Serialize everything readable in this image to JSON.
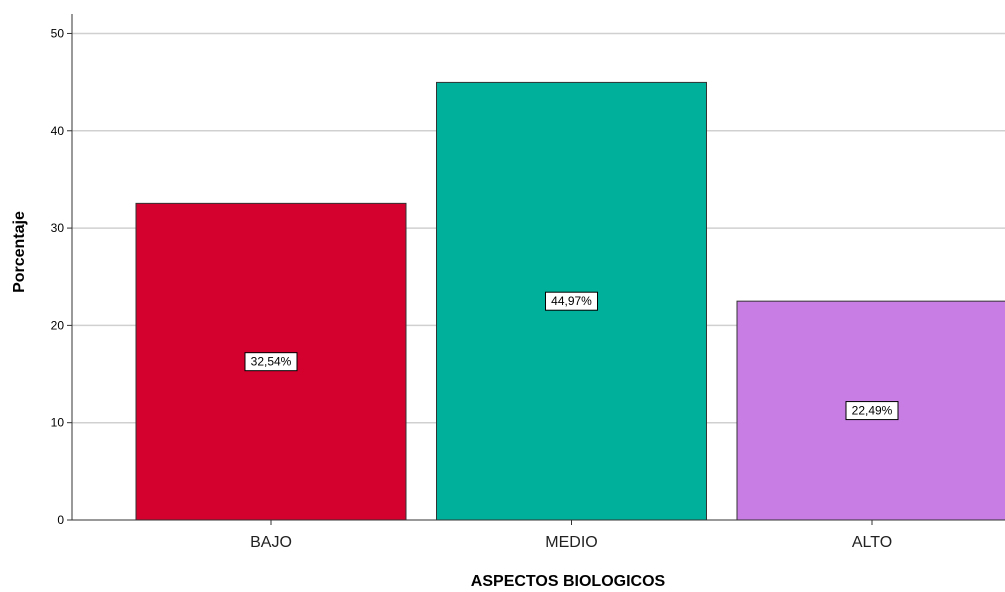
{
  "chart_data": {
    "type": "bar",
    "categories": [
      "BAJO",
      "MEDIO",
      "ALTO"
    ],
    "values": [
      32.54,
      44.97,
      22.49
    ],
    "data_labels": [
      "32,54%",
      "44,97%",
      "22,49%"
    ],
    "colors": [
      "#d4002e",
      "#00b09b",
      "#c77de3"
    ],
    "xlabel": "ASPECTOS BIOLOGICOS",
    "ylabel": "Porcentaje",
    "ylim": [
      0,
      52
    ],
    "yticks": [
      0,
      10,
      20,
      30,
      40,
      50
    ],
    "grid": true,
    "gridline_color": "#d0d0d0"
  }
}
